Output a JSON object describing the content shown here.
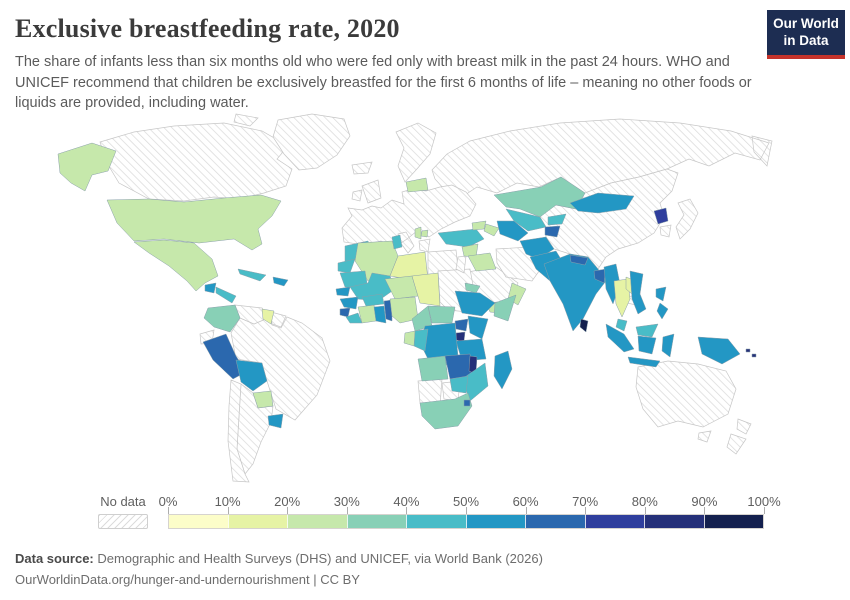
{
  "header": {
    "title": "Exclusive breastfeeding rate, 2020",
    "subtitle": "The share of infants less than six months old who were fed only with breast milk in the past 24 hours. WHO and UNICEF recommend that children be exclusively breastfed for the first 6 months of life – meaning no other foods or liquids are provided, including water.",
    "logo": {
      "line1": "Our World",
      "line2": "in Data",
      "bg_color": "#1d2d52",
      "accent_color": "#c5332b"
    }
  },
  "legend": {
    "no_data_label": "No data",
    "tick_labels": [
      "0%",
      "10%",
      "20%",
      "30%",
      "40%",
      "50%",
      "60%",
      "70%",
      "80%",
      "90%",
      "100%"
    ],
    "bins": [
      {
        "label": "0-10%",
        "color": "#fcfdc9"
      },
      {
        "label": "10-20%",
        "color": "#e6f3a5"
      },
      {
        "label": "20-30%",
        "color": "#c6e8ab"
      },
      {
        "label": "30-40%",
        "color": "#88d0b6"
      },
      {
        "label": "40-50%",
        "color": "#49bcc7"
      },
      {
        "label": "50-60%",
        "color": "#2397c4"
      },
      {
        "label": "60-70%",
        "color": "#2b68ae"
      },
      {
        "label": "70-80%",
        "color": "#2f3e9d"
      },
      {
        "label": "80-90%",
        "color": "#253079"
      },
      {
        "label": "90-100%",
        "color": "#14204e"
      }
    ],
    "no_data_hatch_color": "#d9d9d9"
  },
  "footer": {
    "source_label": "Data source:",
    "source_text": " Demographic and Health Surveys (DHS) and UNICEF, via World Bank (2026)",
    "citation": "OurWorldinData.org/hunger-and-undernourishment | CC BY"
  },
  "chart_data": {
    "type": "heatmap",
    "subtype": "world-choropleth",
    "title": "Exclusive breastfeeding rate, 2020",
    "unit": "%",
    "scale_ticks": [
      "0%",
      "10%",
      "20%",
      "30%",
      "40%",
      "50%",
      "60%",
      "70%",
      "80%",
      "90%",
      "100%"
    ],
    "bin_note": "bin = index into legend.bins, -1 means No data",
    "regions": [
      {
        "id": "canada",
        "name": "Canada",
        "bin": -1
      },
      {
        "id": "greenland",
        "name": "Greenland",
        "bin": -1
      },
      {
        "id": "russia",
        "name": "Russia",
        "bin": -1
      },
      {
        "id": "europe",
        "name": "Europe (most countries)",
        "bin": -1
      },
      {
        "id": "scandinavia",
        "name": "Scandinavia",
        "bin": -1
      },
      {
        "id": "iceland",
        "name": "Iceland",
        "bin": -1
      },
      {
        "id": "uk_ireland",
        "name": "United Kingdom & Ireland",
        "bin": -1
      },
      {
        "id": "china",
        "name": "China",
        "bin": -1
      },
      {
        "id": "brazil",
        "name": "Brazil",
        "bin": -1
      },
      {
        "id": "argentina",
        "name": "Argentina",
        "bin": -1
      },
      {
        "id": "chile",
        "name": "Chile",
        "bin": -1
      },
      {
        "id": "australia",
        "name": "Australia",
        "bin": -1
      },
      {
        "id": "new_zealand",
        "name": "New Zealand",
        "bin": -1
      },
      {
        "id": "saudi",
        "name": "Saudi Arabia",
        "bin": -1
      },
      {
        "id": "iran",
        "name": "Iran",
        "bin": -1
      },
      {
        "id": "egypt",
        "name": "Egypt",
        "bin": -1
      },
      {
        "id": "sudan",
        "name": "Sudan",
        "bin": -1
      },
      {
        "id": "namibia",
        "name": "Namibia",
        "bin": -1
      },
      {
        "id": "botswana",
        "name": "Botswana",
        "bin": -1
      },
      {
        "id": "venezuela",
        "name": "Venezuela",
        "bin": -1
      },
      {
        "id": "suriname",
        "name": "Suriname & French Guiana",
        "bin": -1
      },
      {
        "id": "ecuador",
        "name": "Ecuador",
        "bin": -1
      },
      {
        "id": "japan",
        "name": "Japan",
        "bin": -1
      },
      {
        "id": "south_korea",
        "name": "South Korea",
        "bin": -1
      },
      {
        "id": "jordan",
        "name": "Jordan & Israel",
        "bin": -1
      },
      {
        "id": "cambodia",
        "name": "Cambodia",
        "bin": -1
      },
      {
        "id": "lesotho",
        "name": "Lesotho",
        "bin": -1
      },
      {
        "id": "usa",
        "name": "United States",
        "bin": 2
      },
      {
        "id": "alaska",
        "name": "United States",
        "bin": 2
      },
      {
        "id": "mexico",
        "name": "Mexico",
        "bin": 2
      },
      {
        "id": "guatemala",
        "name": "Guatemala",
        "bin": 5
      },
      {
        "id": "central_america",
        "name": "Central America",
        "bin": 4
      },
      {
        "id": "cuba",
        "name": "Cuba",
        "bin": 4
      },
      {
        "id": "hispaniola",
        "name": "Haiti & Dominican Republic",
        "bin": 5
      },
      {
        "id": "colombia",
        "name": "Colombia",
        "bin": 3
      },
      {
        "id": "guyana",
        "name": "Guyana",
        "bin": 1
      },
      {
        "id": "peru",
        "name": "Peru",
        "bin": 6
      },
      {
        "id": "bolivia",
        "name": "Bolivia",
        "bin": 5
      },
      {
        "id": "paraguay",
        "name": "Paraguay",
        "bin": 2
      },
      {
        "id": "uruguay",
        "name": "Uruguay",
        "bin": 5
      },
      {
        "id": "belarus",
        "name": "Belarus",
        "bin": 2
      },
      {
        "id": "albania",
        "name": "Albania",
        "bin": 2
      },
      {
        "id": "nmacedonia",
        "name": "North Macedonia",
        "bin": 2
      },
      {
        "id": "turkey",
        "name": "Turkey",
        "bin": 4
      },
      {
        "id": "georgia",
        "name": "Georgia",
        "bin": 2
      },
      {
        "id": "azerbaijan",
        "name": "Azerbaijan",
        "bin": 2
      },
      {
        "id": "syria",
        "name": "Syria",
        "bin": 2
      },
      {
        "id": "iraq",
        "name": "Iraq",
        "bin": 2
      },
      {
        "id": "yemen",
        "name": "Yemen",
        "bin": 2
      },
      {
        "id": "oman",
        "name": "Oman",
        "bin": 2
      },
      {
        "id": "kazakhstan",
        "name": "Kazakhstan",
        "bin": 3
      },
      {
        "id": "uzbekistan",
        "name": "Uzbekistan",
        "bin": 4
      },
      {
        "id": "turkmenistan",
        "name": "Turkmenistan",
        "bin": 5
      },
      {
        "id": "kyrgyzstan",
        "name": "Kyrgyzstan",
        "bin": 4
      },
      {
        "id": "tajikistan",
        "name": "Tajikistan",
        "bin": 6
      },
      {
        "id": "afghanistan",
        "name": "Afghanistan",
        "bin": 5
      },
      {
        "id": "pakistan",
        "name": "Pakistan",
        "bin": 5
      },
      {
        "id": "india",
        "name": "India",
        "bin": 5
      },
      {
        "id": "nepal",
        "name": "Nepal",
        "bin": 6
      },
      {
        "id": "bangladesh",
        "name": "Bangladesh",
        "bin": 6
      },
      {
        "id": "sri_lanka",
        "name": "Sri Lanka",
        "bin": 9
      },
      {
        "id": "myanmar",
        "name": "Myanmar",
        "bin": 5
      },
      {
        "id": "thailand",
        "name": "Thailand",
        "bin": 1
      },
      {
        "id": "laos",
        "name": "Laos",
        "bin": 1
      },
      {
        "id": "vietnam",
        "name": "Vietnam",
        "bin": 5
      },
      {
        "id": "mongolia",
        "name": "Mongolia",
        "bin": 5
      },
      {
        "id": "north_korea",
        "name": "North Korea",
        "bin": 7
      },
      {
        "id": "philippines",
        "name": "Philippines",
        "bin": 5
      },
      {
        "id": "malaysia",
        "name": "Malaysia",
        "bin": 4
      },
      {
        "id": "malaysia_b",
        "name": "Malaysia (Borneo)",
        "bin": 4
      },
      {
        "id": "indonesia",
        "name": "Indonesia",
        "bin": 5
      },
      {
        "id": "new_guinea",
        "name": "Papua New Guinea",
        "bin": 5
      },
      {
        "id": "solomon",
        "name": "Solomon Islands",
        "bin": 8
      },
      {
        "id": "morocco",
        "name": "Morocco",
        "bin": 4
      },
      {
        "id": "wsahara",
        "name": "Western Sahara",
        "bin": 4
      },
      {
        "id": "algeria",
        "name": "Algeria",
        "bin": 2
      },
      {
        "id": "tunisia",
        "name": "Tunisia",
        "bin": 4
      },
      {
        "id": "libya",
        "name": "Libya",
        "bin": 1
      },
      {
        "id": "mauritania",
        "name": "Mauritania",
        "bin": 4
      },
      {
        "id": "mali",
        "name": "Mali",
        "bin": 4
      },
      {
        "id": "niger",
        "name": "Niger",
        "bin": 2
      },
      {
        "id": "chad",
        "name": "Chad",
        "bin": 1
      },
      {
        "id": "senegal",
        "name": "Senegal",
        "bin": 5
      },
      {
        "id": "guinea",
        "name": "Guinea",
        "bin": 5
      },
      {
        "id": "sierra_leone",
        "name": "Sierra Leone",
        "bin": 6
      },
      {
        "id": "liberia",
        "name": "Liberia",
        "bin": 4
      },
      {
        "id": "cote_divoire",
        "name": "Cote d'Ivoire",
        "bin": 2
      },
      {
        "id": "ghana",
        "name": "Ghana",
        "bin": 5
      },
      {
        "id": "togo_benin",
        "name": "Togo & Benin",
        "bin": 6
      },
      {
        "id": "burkina",
        "name": "Burkina Faso",
        "bin": 4
      },
      {
        "id": "nigeria",
        "name": "Nigeria",
        "bin": 2
      },
      {
        "id": "cameroon",
        "name": "Cameroon",
        "bin": 3
      },
      {
        "id": "car",
        "name": "Central African Republic",
        "bin": 3
      },
      {
        "id": "eritrea",
        "name": "Eritrea",
        "bin": 3
      },
      {
        "id": "ethiopia",
        "name": "Ethiopia",
        "bin": 5
      },
      {
        "id": "somalia",
        "name": "Somalia",
        "bin": 3
      },
      {
        "id": "uganda",
        "name": "Uganda",
        "bin": 6
      },
      {
        "id": "kenya",
        "name": "Kenya",
        "bin": 5
      },
      {
        "id": "rwanda_burundi",
        "name": "Rwanda & Burundi",
        "bin": 8
      },
      {
        "id": "tanzania",
        "name": "Tanzania",
        "bin": 5
      },
      {
        "id": "drc",
        "name": "Democratic Republic of Congo",
        "bin": 5
      },
      {
        "id": "congo",
        "name": "Congo",
        "bin": 4
      },
      {
        "id": "gabon",
        "name": "Gabon",
        "bin": 2
      },
      {
        "id": "angola",
        "name": "Angola",
        "bin": 3
      },
      {
        "id": "zambia",
        "name": "Zambia",
        "bin": 6
      },
      {
        "id": "malawi",
        "name": "Malawi",
        "bin": 8
      },
      {
        "id": "mozambique",
        "name": "Mozambique",
        "bin": 4
      },
      {
        "id": "zimbabwe",
        "name": "Zimbabwe",
        "bin": 4
      },
      {
        "id": "south_africa",
        "name": "South Africa",
        "bin": 3
      },
      {
        "id": "eswatini",
        "name": "Eswatini",
        "bin": 6
      },
      {
        "id": "madagascar",
        "name": "Madagascar",
        "bin": 5
      }
    ]
  }
}
